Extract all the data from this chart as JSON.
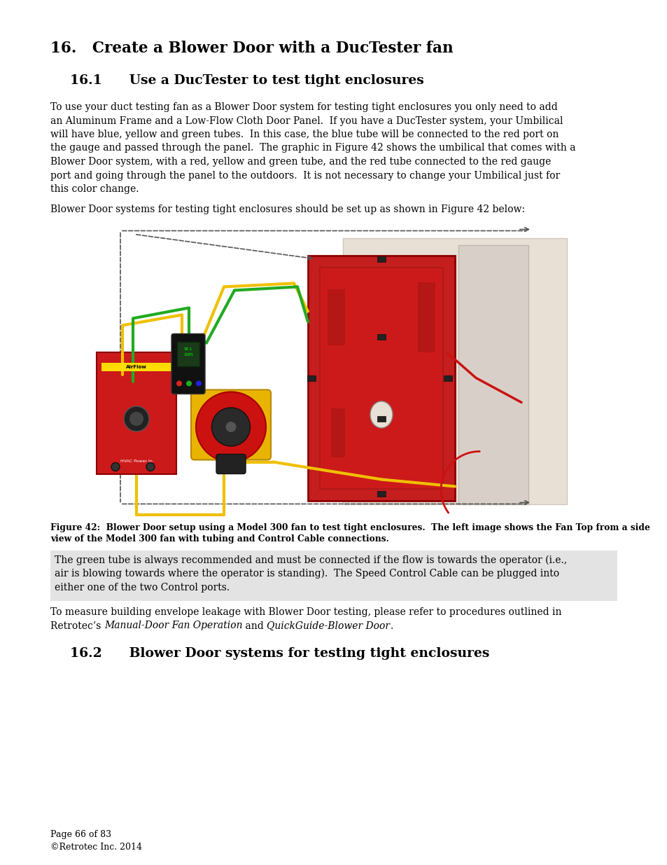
{
  "page_bg": "#ffffff",
  "title_16": "16.   Create a Blower Door with a DucTester fan",
  "title_161": "16.1      Use a DucTester to test tight enclosures",
  "body_text_1_lines": [
    "To use your duct testing fan as a Blower Door system for testing tight enclosures you only need to add",
    "an Aluminum Frame and a Low-Flow Cloth Door Panel.  If you have a DucTester system, your Umbilical",
    "will have blue, yellow and green tubes.  In this case, the blue tube will be connected to the red port on",
    "the gauge and passed through the panel.  The graphic in Figure 42 shows the umbilical that comes with a",
    "Blower Door system, with a red, yellow and green tube, and the red tube connected to the red gauge",
    "port and going through the panel to the outdoors.  It is not necessary to change your Umbilical just for",
    "this color change."
  ],
  "body_text_2": "Blower Door systems for testing tight enclosures should be set up as shown in Figure 42 below:",
  "fig_caption_line1": "Figure 42:  Blower Door setup using a Model 300 fan to test tight enclosures.  The left image shows the Fan Top from a side",
  "fig_caption_line2": "view of the Model 300 fan with tubing and Control Cable connections.",
  "callout_lines": [
    "The green tube is always recommended and must be connected if the flow is towards the operator (i.e.,",
    "air is blowing towards where the operator is standing).  The Speed Control Cable can be plugged into",
    "either one of the two Control ports."
  ],
  "body_text_3_line1": "To measure building envelope leakage with Blower Door testing, please refer to procedures outlined in",
  "body_text_3_line2_parts": [
    {
      "text": "Retrotec’s ",
      "italic": false
    },
    {
      "text": "Manual-Door Fan Operation",
      "italic": true
    },
    {
      "text": " and ",
      "italic": false
    },
    {
      "text": "QuickGuide-Blower Door",
      "italic": true
    },
    {
      "text": ".",
      "italic": false
    }
  ],
  "title_162": "16.2      Blower Door systems for testing tight enclosures",
  "footer_1": "Page 66 of 83",
  "footer_2": "©Retrotec Inc. 2014",
  "callout_bg": "#e3e3e3",
  "text_color": "#000000",
  "body_fontsize": 10.0,
  "title16_fontsize": 15.5,
  "title161_fontsize": 13.5,
  "caption_fontsize": 8.8,
  "footer_fontsize": 9.0
}
